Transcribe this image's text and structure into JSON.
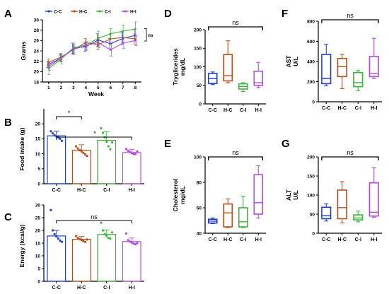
{
  "panels": [
    {
      "id": "A",
      "letter": "A"
    },
    {
      "id": "B",
      "letter": "B"
    },
    {
      "id": "C",
      "letter": "C"
    },
    {
      "id": "D",
      "letter": "D"
    },
    {
      "id": "E",
      "letter": "E"
    },
    {
      "id": "F",
      "letter": "F"
    },
    {
      "id": "G",
      "letter": "G"
    }
  ],
  "colors": {
    "C-C": "#1f3fd0",
    "H-C": "#b4501e",
    "C-I": "#3cb43c",
    "H-I": "#b04ed8"
  },
  "chart_data": [
    {
      "id": "A",
      "type": "line",
      "ylabel": "Grams",
      "xlabel": "Week",
      "x": [
        1,
        2,
        3,
        4,
        5,
        6,
        7,
        8
      ],
      "yticks": [
        18,
        20,
        22,
        24,
        26,
        28,
        30
      ],
      "ylim": [
        18,
        30
      ],
      "annotation": "ns",
      "legend_position": "top",
      "series": [
        {
          "name": "C-C",
          "values": [
            21.4,
            22.6,
            24.5,
            24.8,
            26.1,
            25.4,
            26.4,
            27.0
          ],
          "err": [
            0.6,
            0.6,
            1.0,
            0.9,
            1.2,
            1.0,
            1.2,
            1.1
          ]
        },
        {
          "name": "H-C",
          "values": [
            21.8,
            22.8,
            24.2,
            25.6,
            25.2,
            26.3,
            26.6,
            26.3
          ],
          "err": [
            0.6,
            0.7,
            0.9,
            0.8,
            1.0,
            1.0,
            1.0,
            1.0
          ]
        },
        {
          "name": "C-I",
          "values": [
            20.6,
            22.4,
            24.6,
            25.1,
            26.4,
            27.3,
            27.8,
            28.2
          ],
          "err": [
            1.2,
            0.9,
            0.9,
            1.0,
            1.4,
            1.0,
            1.2,
            1.4
          ]
        },
        {
          "name": "H-I",
          "values": [
            21.0,
            22.6,
            24.3,
            25.0,
            25.6,
            24.2,
            25.5,
            26.0
          ],
          "err": [
            0.8,
            0.7,
            0.9,
            0.8,
            1.0,
            1.2,
            1.0,
            1.0
          ]
        }
      ]
    },
    {
      "id": "B",
      "type": "bar",
      "ylabel": "Food intake (g)",
      "categories": [
        "C-C",
        "H-C",
        "C-I",
        "H-I"
      ],
      "values": [
        16,
        11.2,
        14.5,
        10.4
      ],
      "err": [
        1.6,
        1.8,
        2.8,
        1.1
      ],
      "points": [
        [
          17.5,
          16.8,
          16.2,
          15.8,
          15.5,
          15.0,
          14.3
        ],
        [
          12.5,
          11.8,
          11.2,
          10.8,
          10.3,
          9.8,
          9.3
        ],
        [
          18.5,
          17.0,
          15.5,
          14.0,
          12.5,
          11.5,
          13.8
        ],
        [
          11.6,
          11.0,
          10.6,
          10.2,
          10.0,
          9.9,
          10.8
        ]
      ],
      "ylim": [
        0,
        25
      ],
      "yticks": [
        0,
        5,
        10,
        15,
        20
      ],
      "significance": [
        {
          "from": 0,
          "to": 1,
          "label": "*"
        },
        {
          "from": 0,
          "to": 3,
          "label": "*"
        }
      ]
    },
    {
      "id": "C",
      "type": "bar",
      "ylabel": "Energy (kcal/g)",
      "categories": [
        "C-C",
        "H-C",
        "C-I",
        "H-I"
      ],
      "values": [
        17.8,
        16.5,
        18.4,
        15.6
      ],
      "err": [
        2.2,
        1.1,
        1.8,
        1.4
      ],
      "points": [
        [
          28.0,
          20.0,
          18.5,
          17.6,
          16.8,
          16.0,
          15.5
        ],
        [
          17.8,
          17.0,
          16.6,
          16.2,
          15.8,
          15.5,
          16.4
        ],
        [
          23.0,
          20.0,
          18.5,
          17.8,
          17.0,
          16.8,
          19.2
        ],
        [
          18.8,
          16.2,
          15.6,
          15.2,
          14.8,
          14.6,
          15.0
        ]
      ],
      "ylim": [
        0,
        30
      ],
      "yticks": [
        0,
        5,
        10,
        15,
        20,
        25,
        30
      ],
      "significance": [
        {
          "from": 0,
          "to": 3,
          "label": "ns"
        }
      ]
    },
    {
      "id": "D",
      "type": "box",
      "ylabel": "Tryglicerides",
      "ylabel2": "mg/dL",
      "categories": [
        "C-C",
        "H-C",
        "C-I",
        "H-I"
      ],
      "boxes": [
        {
          "min": 52,
          "q1": 55,
          "median": 68,
          "q3": 82,
          "max": 86
        },
        {
          "min": 57,
          "q1": 62,
          "median": 76,
          "q3": 133,
          "max": 170
        },
        {
          "min": 33,
          "q1": 40,
          "median": 47,
          "q3": 54,
          "max": 57
        },
        {
          "min": 44,
          "q1": 50,
          "median": 57,
          "q3": 88,
          "max": 112
        }
      ],
      "ylim": [
        0,
        200
      ],
      "yticks": [
        0,
        50,
        100,
        150,
        200
      ],
      "significance": [
        {
          "from": 0,
          "to": 3,
          "label": "ns"
        }
      ]
    },
    {
      "id": "E",
      "type": "box",
      "ylabel": "Cholesterol",
      "ylabel2": "mg/dL",
      "categories": [
        "C-C",
        "H-C",
        "C-I",
        "H-I"
      ],
      "boxes": [
        {
          "min": 47.5,
          "q1": 48,
          "median": 49.5,
          "q3": 51,
          "max": 52
        },
        {
          "min": 44.5,
          "q1": 45,
          "median": 56,
          "q3": 63,
          "max": 67
        },
        {
          "min": 44.5,
          "q1": 45,
          "median": 49,
          "q3": 60,
          "max": 69
        },
        {
          "min": 52,
          "q1": 55,
          "median": 64,
          "q3": 86,
          "max": 93
        }
      ],
      "ylim": [
        40,
        100
      ],
      "yticks": [
        40,
        60,
        80,
        100
      ],
      "significance": [
        {
          "from": 0,
          "to": 3,
          "label": "ns"
        }
      ]
    },
    {
      "id": "F",
      "type": "box",
      "ylabel": "AST",
      "ylabel2": "U/L",
      "categories": [
        "C-C",
        "H-C",
        "C-I",
        "H-I"
      ],
      "boxes": [
        {
          "min": 160,
          "q1": 180,
          "median": 230,
          "q3": 470,
          "max": 570
        },
        {
          "min": 130,
          "q1": 250,
          "median": 350,
          "q3": 430,
          "max": 470
        },
        {
          "min": 110,
          "q1": 150,
          "median": 190,
          "q3": 290,
          "max": 310
        },
        {
          "min": 230,
          "q1": 250,
          "median": 280,
          "q3": 450,
          "max": 630
        }
      ],
      "ylim": [
        0,
        800
      ],
      "yticks": [
        0,
        200,
        400,
        600,
        800
      ],
      "significance": [
        {
          "from": 0,
          "to": 3,
          "label": "ns"
        }
      ]
    },
    {
      "id": "G",
      "type": "box",
      "ylabel": "ALT",
      "ylabel2": "U/L",
      "categories": [
        "C-C",
        "H-C",
        "C-I",
        "H-I"
      ],
      "boxes": [
        {
          "min": 32,
          "q1": 38,
          "median": 46,
          "q3": 68,
          "max": 77
        },
        {
          "min": 27,
          "q1": 38,
          "median": 67,
          "q3": 113,
          "max": 135
        },
        {
          "min": 30,
          "q1": 35,
          "median": 40,
          "q3": 48,
          "max": 58
        },
        {
          "min": 42,
          "q1": 45,
          "median": 55,
          "q3": 132,
          "max": 172
        }
      ],
      "ylim": [
        0,
        200
      ],
      "yticks": [
        0,
        50,
        100,
        150,
        200
      ],
      "significance": [
        {
          "from": 0,
          "to": 3,
          "label": "ns"
        }
      ]
    }
  ]
}
